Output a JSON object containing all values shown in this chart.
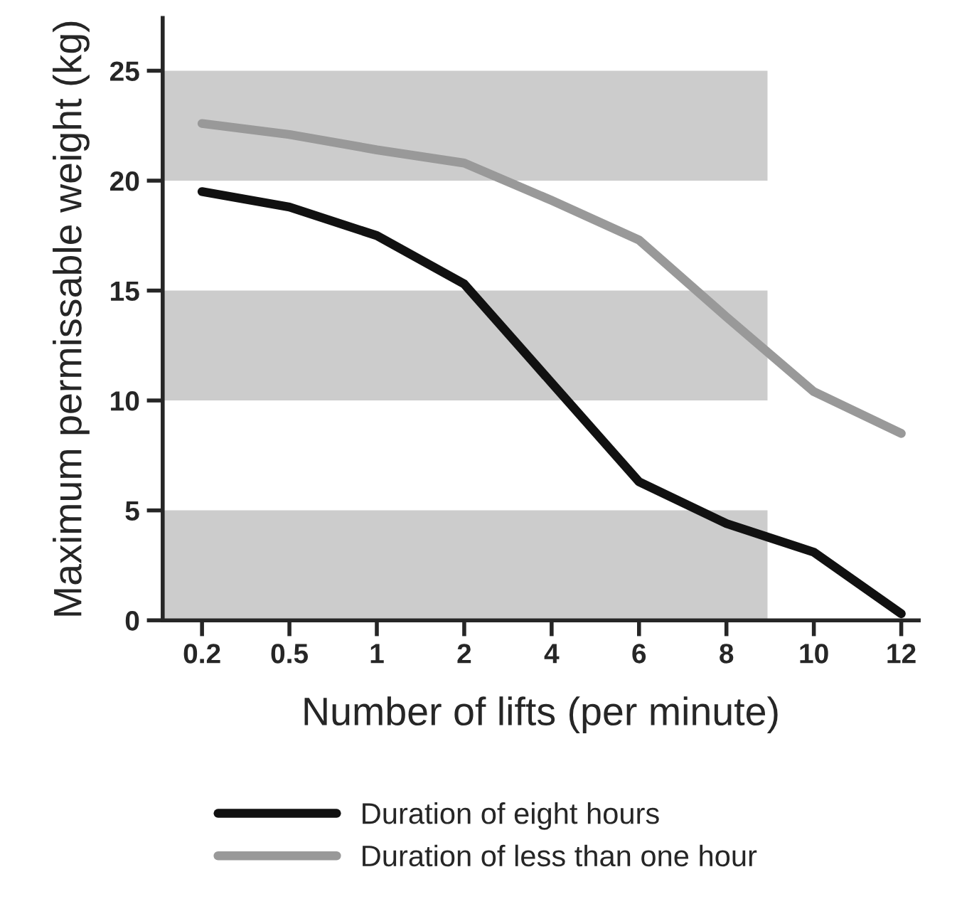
{
  "chart_data": {
    "type": "line",
    "xlabel": "Number of lifts (per minute)",
    "ylabel": "Maximum permissable weight (kg)",
    "categories": [
      "0.2",
      "0.5",
      "1",
      "2",
      "4",
      "6",
      "8",
      "10",
      "12"
    ],
    "series": [
      {
        "name": "Duration of eight hours",
        "color": "#111111",
        "values": [
          19.5,
          18.8,
          17.5,
          15.3,
          10.8,
          6.3,
          4.4,
          3.1,
          0.3
        ]
      },
      {
        "name": "Duration of less than one hour",
        "color": "#999999",
        "values": [
          22.6,
          22.1,
          21.4,
          20.8,
          19.1,
          17.3,
          13.8,
          10.4,
          8.5
        ]
      }
    ],
    "ylim": [
      0,
      27.4
    ],
    "yticks": [
      0,
      5,
      10,
      15,
      20,
      25
    ],
    "bands": [
      {
        "axis": "y",
        "from": 0,
        "to": 5,
        "color": "#cccccc"
      },
      {
        "axis": "y",
        "from": 10,
        "to": 15,
        "color": "#cccccc"
      },
      {
        "axis": "y",
        "from": 20,
        "to": 25,
        "color": "#cccccc"
      }
    ],
    "grid": false,
    "legend": "bottom",
    "marker": "none",
    "line_style": "solid"
  }
}
